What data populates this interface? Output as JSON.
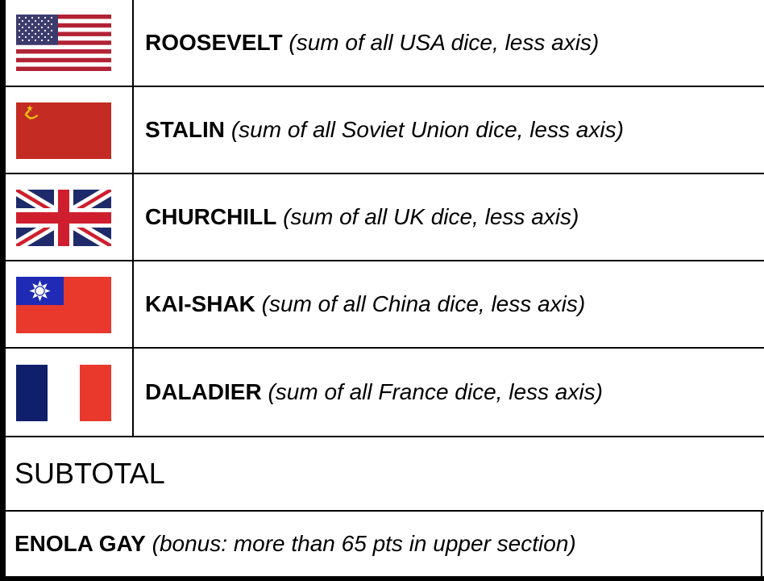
{
  "rows": [
    {
      "name": "ROOSEVELT",
      "note": "(sum of all USA dice, less axis)",
      "flag_icon": "usa-flag-icon"
    },
    {
      "name": "STALIN",
      "note": "(sum of all Soviet Union dice, less axis)",
      "flag_icon": "soviet-union-flag-icon"
    },
    {
      "name": "CHURCHILL",
      "note": "(sum of all UK dice, less axis)",
      "flag_icon": "uk-flag-icon"
    },
    {
      "name": "KAI-SHAK",
      "note": "(sum of all China dice, less axis)",
      "flag_icon": "china-roc-flag-icon"
    },
    {
      "name": "DALADIER",
      "note": "(sum of all France dice, less axis)",
      "flag_icon": "france-flag-icon"
    }
  ],
  "subtotal": {
    "label": "SUBTOTAL"
  },
  "bonus": {
    "name": "ENOLA GAY",
    "note": "(bonus: more than 65 pts in upper section)"
  },
  "colors": {
    "usa_red": "#b22234",
    "usa_blue": "#3c3b6e",
    "soviet_red": "#c42b22",
    "soviet_gold": "#f5c518",
    "uk_blue": "#1f2a6b",
    "uk_red": "#cf1f2e",
    "roc_red": "#e8392c",
    "roc_blue": "#1f2bb4",
    "fr_blue": "#0f1f6b",
    "fr_red": "#e8392c"
  }
}
